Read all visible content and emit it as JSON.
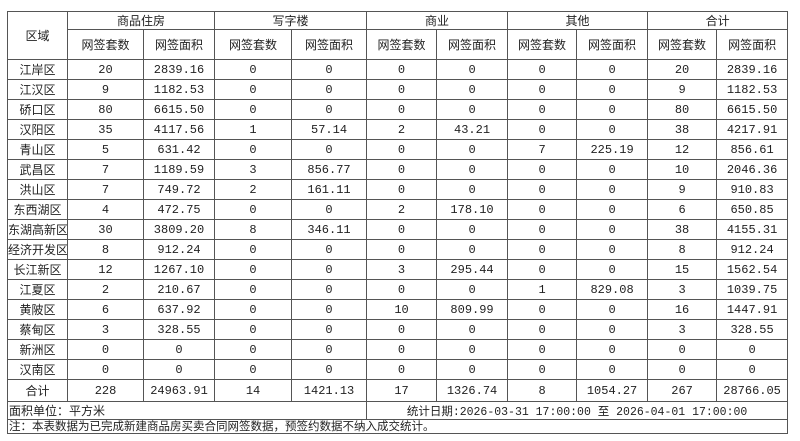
{
  "header": {
    "region_label": "区域",
    "groups": [
      "商品住房",
      "写字楼",
      "商业",
      "其他",
      "合计"
    ],
    "sub_count": "网签套数",
    "sub_area": "网签面积"
  },
  "rows": [
    {
      "region": "江岸区",
      "values": [
        "20",
        "2839.16",
        "0",
        "0",
        "0",
        "0",
        "0",
        "0",
        "20",
        "2839.16"
      ]
    },
    {
      "region": "江汉区",
      "values": [
        "9",
        "1182.53",
        "0",
        "0",
        "0",
        "0",
        "0",
        "0",
        "9",
        "1182.53"
      ]
    },
    {
      "region": "硚口区",
      "values": [
        "80",
        "6615.50",
        "0",
        "0",
        "0",
        "0",
        "0",
        "0",
        "80",
        "6615.50"
      ]
    },
    {
      "region": "汉阳区",
      "values": [
        "35",
        "4117.56",
        "1",
        "57.14",
        "2",
        "43.21",
        "0",
        "0",
        "38",
        "4217.91"
      ]
    },
    {
      "region": "青山区",
      "values": [
        "5",
        "631.42",
        "0",
        "0",
        "0",
        "0",
        "7",
        "225.19",
        "12",
        "856.61"
      ]
    },
    {
      "region": "武昌区",
      "values": [
        "7",
        "1189.59",
        "3",
        "856.77",
        "0",
        "0",
        "0",
        "0",
        "10",
        "2046.36"
      ]
    },
    {
      "region": "洪山区",
      "values": [
        "7",
        "749.72",
        "2",
        "161.11",
        "0",
        "0",
        "0",
        "0",
        "9",
        "910.83"
      ]
    },
    {
      "region": "东西湖区",
      "values": [
        "4",
        "472.75",
        "0",
        "0",
        "2",
        "178.10",
        "0",
        "0",
        "6",
        "650.85"
      ]
    },
    {
      "region": "东湖高新区",
      "values": [
        "30",
        "3809.20",
        "8",
        "346.11",
        "0",
        "0",
        "0",
        "0",
        "38",
        "4155.31"
      ]
    },
    {
      "region": "经济开发区",
      "values": [
        "8",
        "912.24",
        "0",
        "0",
        "0",
        "0",
        "0",
        "0",
        "8",
        "912.24"
      ]
    },
    {
      "region": "长江新区",
      "values": [
        "12",
        "1267.10",
        "0",
        "0",
        "3",
        "295.44",
        "0",
        "0",
        "15",
        "1562.54"
      ]
    },
    {
      "region": "江夏区",
      "values": [
        "2",
        "210.67",
        "0",
        "0",
        "0",
        "0",
        "1",
        "829.08",
        "3",
        "1039.75"
      ]
    },
    {
      "region": "黄陂区",
      "values": [
        "6",
        "637.92",
        "0",
        "0",
        "10",
        "809.99",
        "0",
        "0",
        "16",
        "1447.91"
      ]
    },
    {
      "region": "蔡甸区",
      "values": [
        "3",
        "328.55",
        "0",
        "0",
        "0",
        "0",
        "0",
        "0",
        "3",
        "328.55"
      ]
    },
    {
      "region": "新洲区",
      "values": [
        "0",
        "0",
        "0",
        "0",
        "0",
        "0",
        "0",
        "0",
        "0",
        "0"
      ]
    },
    {
      "region": "汉南区",
      "values": [
        "0",
        "0",
        "0",
        "0",
        "0",
        "0",
        "0",
        "0",
        "0",
        "0"
      ]
    }
  ],
  "total": {
    "region": "合计",
    "values": [
      "228",
      "24963.91",
      "14",
      "1421.13",
      "17",
      "1326.74",
      "8",
      "1054.27",
      "267",
      "28766.05"
    ]
  },
  "footer": {
    "unit": "面积单位：平方米",
    "stat_date": "统计日期:2026-03-31 17:00:00 至 2026-04-01 17:00:00",
    "note": "注：本表数据为已完成新建商品房买卖合同网签数据，预签约数据不纳入成交统计。"
  }
}
